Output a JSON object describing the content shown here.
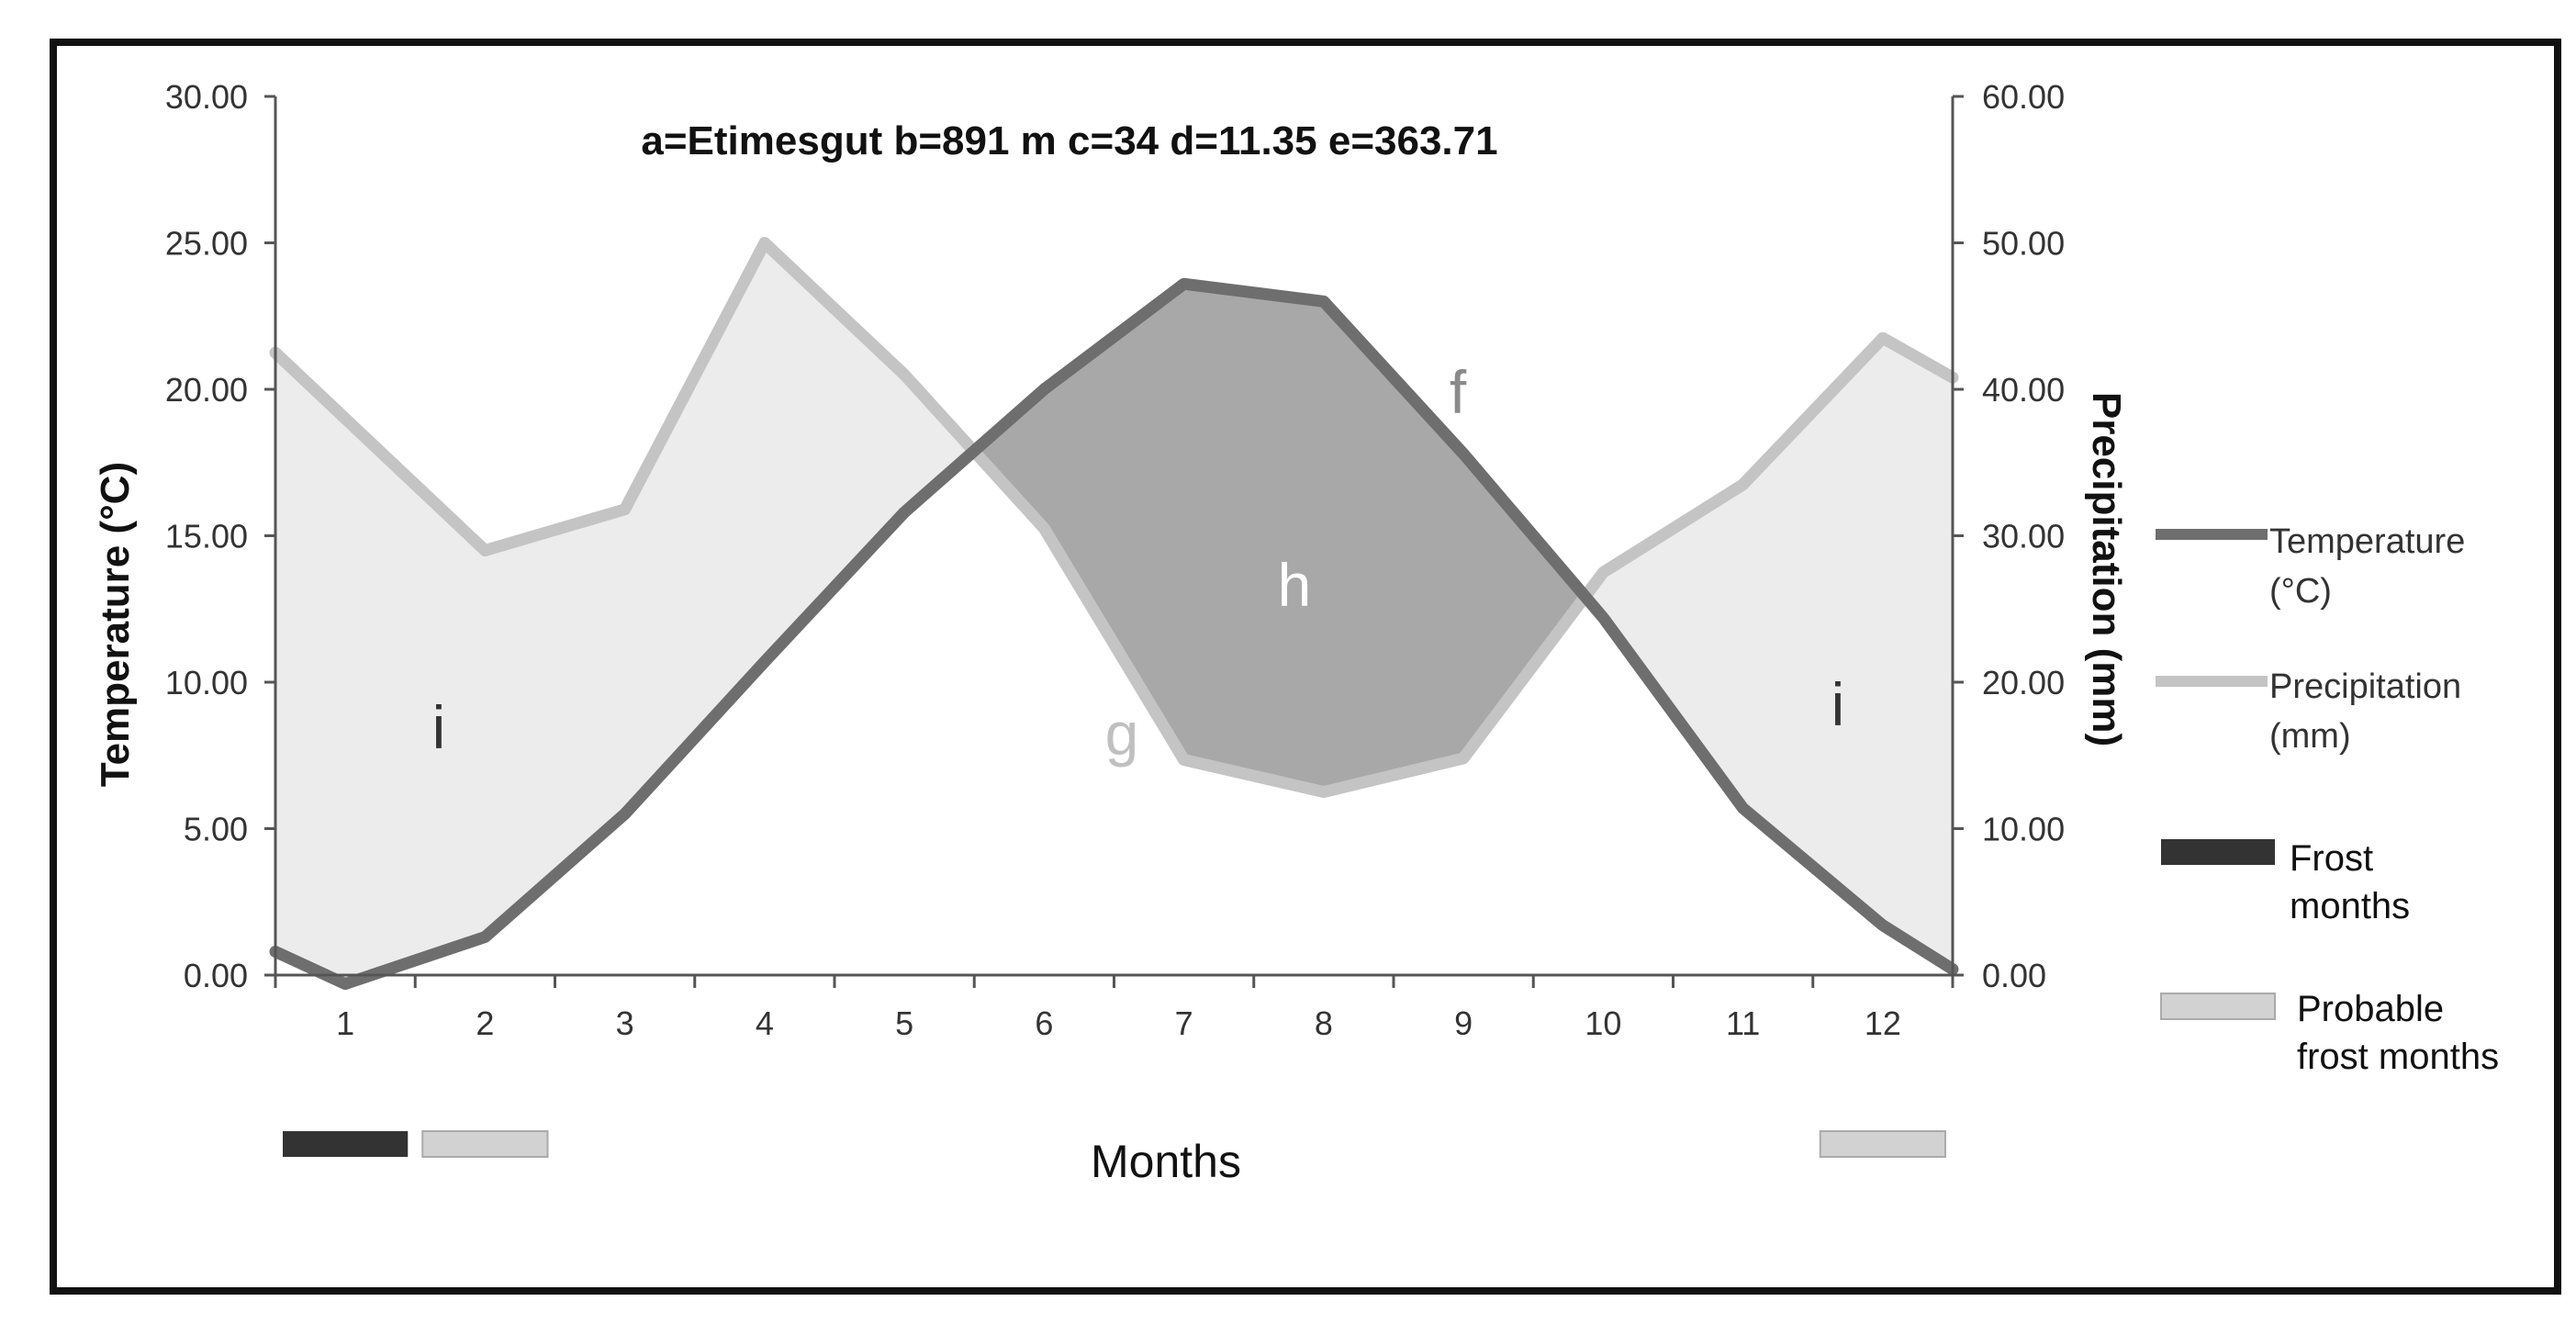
{
  "chart_data": {
    "type": "line",
    "title": "a=Etimesgut  b=891 m  c=34  d=11.35  e=363.71",
    "xlabel": "Months",
    "ylabel_left": "Temperature (°C)",
    "ylabel_right": "Precipitation (mm)",
    "x_ticks": [
      "1",
      "2",
      "3",
      "4",
      "5",
      "6",
      "7",
      "8",
      "9",
      "10",
      "11",
      "12"
    ],
    "y_left_ticks": [
      "0.00",
      "5.00",
      "10.00",
      "15.00",
      "20.00",
      "25.00",
      "30.00"
    ],
    "y_right_ticks": [
      "0.00",
      "10.00",
      "20.00",
      "30.00",
      "40.00",
      "50.00",
      "60.00"
    ],
    "ylim_left": [
      0,
      30
    ],
    "ylim_right": [
      0,
      60
    ],
    "series": [
      {
        "name": "Temperature (°C)",
        "axis": "left",
        "color": "#6e6e6e",
        "x": [
          0.5,
          1,
          2,
          3,
          4,
          5,
          6,
          7,
          8,
          9,
          10,
          11,
          12,
          12.5
        ],
        "values": [
          0.8,
          -0.3,
          1.3,
          5.5,
          10.7,
          15.8,
          20.0,
          23.6,
          23.0,
          17.8,
          12.2,
          5.7,
          1.7,
          0.2
        ]
      },
      {
        "name": "Precipitation (mm)",
        "axis": "right",
        "color": "#c4c4c4",
        "x": [
          0.5,
          1,
          2,
          3,
          4,
          5,
          6,
          7,
          8,
          9,
          10,
          11,
          12,
          12.5
        ],
        "values": [
          42.5,
          38.0,
          29.0,
          31.8,
          50.0,
          41.0,
          30.5,
          14.7,
          12.5,
          14.8,
          27.5,
          33.5,
          43.5,
          40.8
        ]
      }
    ],
    "legend": [
      {
        "label": "Temperature (°C)",
        "color": "#6e6e6e"
      },
      {
        "label": "Precipitation (mm)",
        "color": "#c4c4c4"
      },
      {
        "label": "Frost months",
        "color": "#333333"
      },
      {
        "label": "Probable frost months",
        "color": "#d2d2d2"
      }
    ],
    "frost_months": [
      1
    ],
    "probable_frost_months": [
      2,
      12
    ],
    "annotations": [
      {
        "text": "f",
        "near": "temperature curve, month 9"
      },
      {
        "text": "g",
        "near": "precipitation curve, month 6.5"
      },
      {
        "text": "h",
        "near": "dry period area, months 6-9"
      },
      {
        "text": "i",
        "near": "humid period area, month 1"
      },
      {
        "text": "i",
        "near": "humid period area, month 12"
      }
    ],
    "colors": {
      "humid_fill": "#ececec",
      "arid_fill": "#a8a8a8",
      "frame": "#111111"
    }
  }
}
